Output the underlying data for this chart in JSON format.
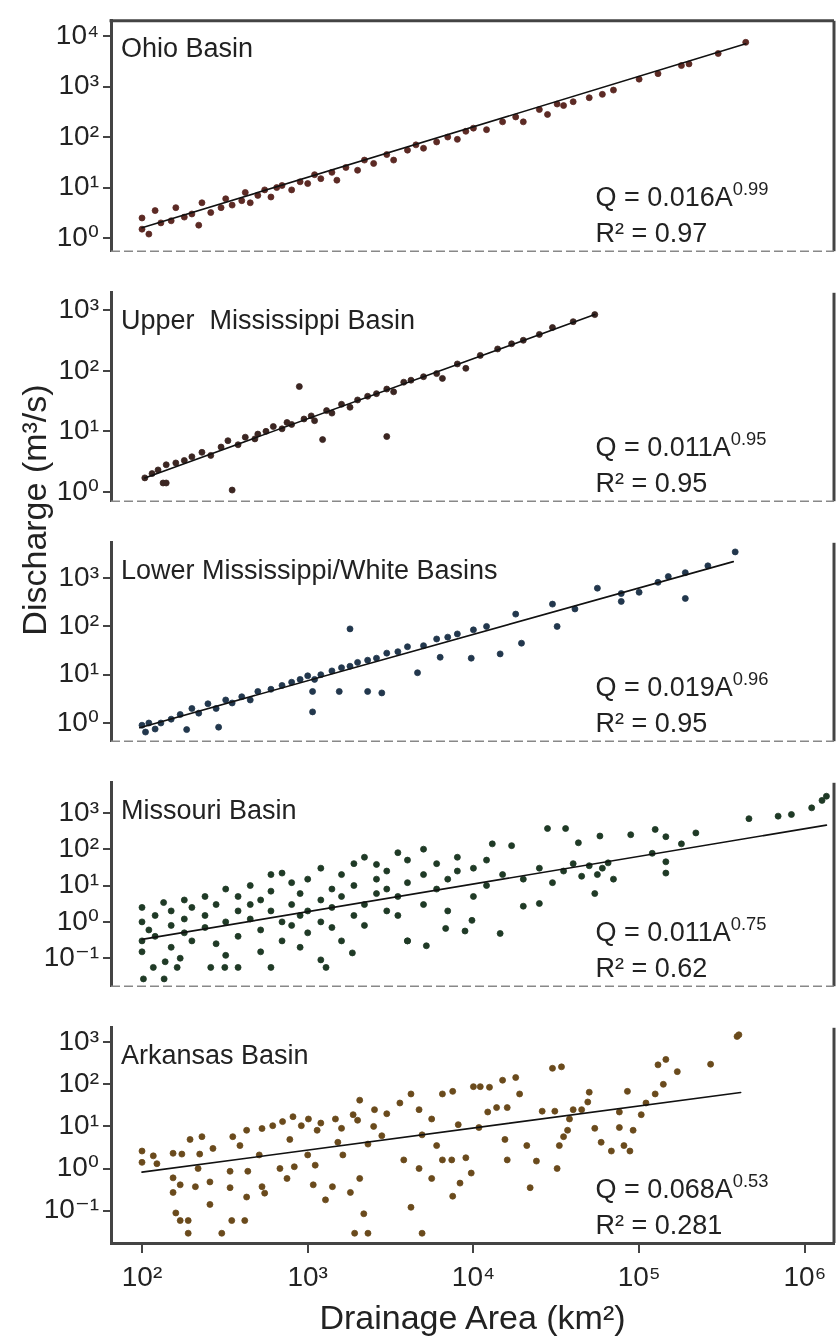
{
  "chart_data": [
    {
      "type": "scatter",
      "log": "xy",
      "tick_labels": "y",
      "xlim": [
        65,
        1500000
      ],
      "ylim": [
        0.55,
        20000
      ],
      "yticks": [
        {
          "value": 1,
          "label": "10⁰"
        },
        {
          "value": 10,
          "label": "10¹"
        },
        {
          "value": 100,
          "label": "10²"
        },
        {
          "value": 1000,
          "label": "10³"
        },
        {
          "value": 10000,
          "label": "10⁴"
        }
      ],
      "annotations": [
        "Ohio Basin",
        "Q = 0.016A$^{0.99}$",
        "R² = 0.97"
      ],
      "series": [
        {
          "type": "scatter",
          "marker": "circle",
          "color": "#5c2a24",
          "x": [
            100,
            100,
            110,
            120,
            130,
            150,
            160,
            180,
            200,
            220,
            230,
            260,
            300,
            320,
            350,
            400,
            420,
            450,
            500,
            550,
            600,
            650,
            700,
            800,
            900,
            1000,
            1100,
            1200,
            1400,
            1500,
            1700,
            2000,
            2200,
            2500,
            3000,
            3300,
            4000,
            4500,
            5000,
            6000,
            7000,
            8000,
            9000,
            10000,
            12000,
            15000,
            18000,
            20000,
            25000,
            28000,
            32000,
            35000,
            40000,
            50000,
            60000,
            70000,
            100000,
            130000,
            180000,
            200000,
            300000,
            440000
          ],
          "values": [
            1.5,
            2.5,
            1.2,
            3.5,
            2.0,
            2.2,
            4.0,
            2.6,
            3.0,
            1.8,
            5.0,
            3.2,
            4.0,
            6.0,
            4.5,
            5.5,
            8,
            5,
            7,
            9,
            6.5,
            10,
            11,
            9,
            13,
            12,
            18,
            15,
            20,
            14,
            25,
            22,
            35,
            30,
            45,
            35,
            55,
            70,
            60,
            80,
            100,
            90,
            130,
            150,
            140,
            200,
            250,
            200,
            350,
            280,
            450,
            420,
            500,
            600,
            700,
            850,
            1400,
            1800,
            2600,
            2800,
            4500,
            7500
          ]
        },
        {
          "type": "line",
          "marker": "none",
          "color": "#111111",
          "x": [
            100,
            440000
          ],
          "values": [
            1.6,
            7000
          ]
        }
      ]
    },
    {
      "type": "scatter",
      "log": "xy",
      "tick_labels": "y",
      "xlim": [
        65,
        1500000
      ],
      "ylim": [
        0.72,
        1950
      ],
      "yticks": [
        {
          "value": 1,
          "label": "10⁰"
        },
        {
          "value": 10,
          "label": "10¹"
        },
        {
          "value": 100,
          "label": "10²"
        },
        {
          "value": 1000,
          "label": "10³"
        }
      ],
      "annotations": [
        "Upper  Mississippi Basin",
        "Q = 0.011A$^{0.95}$",
        "R² = 0.95"
      ],
      "series": [
        {
          "type": "scatter",
          "marker": "circle",
          "color": "#3b2622",
          "x": [
            104,
            115,
            125,
            134,
            140,
            140,
            160,
            180,
            200,
            230,
            260,
            300,
            330,
            350,
            380,
            420,
            480,
            500,
            560,
            620,
            700,
            750,
            800,
            890,
            950,
            1050,
            1100,
            1230,
            1300,
            1400,
            1600,
            1800,
            2000,
            2300,
            2600,
            3000,
            3000,
            3300,
            3800,
            4200,
            5000,
            6000,
            6500,
            8000,
            9000,
            11000,
            14000,
            17000,
            20000,
            25000,
            30000,
            40000,
            54000
          ],
          "values": [
            1.7,
            2.0,
            2.3,
            1.4,
            1.4,
            2.8,
            3.0,
            3.3,
            3.8,
            4.5,
            4.0,
            5.5,
            7,
            1.07,
            6,
            8,
            7.5,
            9,
            10,
            12,
            11,
            14,
            13,
            55,
            16,
            18,
            15,
            7.3,
            22,
            20,
            28,
            25,
            33,
            38,
            42,
            8.2,
            50,
            45,
            65,
            70,
            80,
            90,
            75,
            130,
            110,
            180,
            230,
            280,
            320,
            400,
            520,
            650,
            850
          ]
        },
        {
          "type": "line",
          "marker": "none",
          "color": "#111111",
          "x": [
            104,
            54000
          ],
          "values": [
            1.7,
            850
          ]
        }
      ]
    },
    {
      "type": "scatter",
      "log": "xy",
      "tick_labels": "y",
      "ylabel": "Discharge (m³/s)",
      "xlim": [
        65,
        1500000
      ],
      "ylim": [
        0.42,
        5400
      ],
      "yticks": [
        {
          "value": 1,
          "label": "10⁰"
        },
        {
          "value": 10,
          "label": "10¹"
        },
        {
          "value": 100,
          "label": "10²"
        },
        {
          "value": 1000,
          "label": "10³"
        }
      ],
      "annotations": [
        "Lower Mississippi/White Basins",
        "Q = 0.019A$^{0.96}$",
        "R² = 0.95"
      ],
      "series": [
        {
          "type": "scatter",
          "marker": "circle",
          "color": "#22374d",
          "x": [
            100,
            105,
            110,
            120,
            130,
            150,
            170,
            200,
            220,
            250,
            280,
            320,
            350,
            400,
            450,
            500,
            600,
            700,
            800,
            900,
            1000,
            1100,
            1200,
            1400,
            1600,
            1800,
            2000,
            2300,
            2600,
            3000,
            3500,
            4000,
            5000,
            6000,
            7000,
            8000,
            10000,
            12000,
            1800,
            290,
            186,
            1070,
            1070,
            1550,
            2300,
            2800,
            14500,
            9700,
            6300,
            4600,
            19500,
            32000,
            41000,
            56000,
            78000,
            78000,
            100000,
            130000,
            150000,
            190000,
            190000,
            260000,
            380000,
            18000,
            30000
          ],
          "values": [
            0.9,
            0.65,
            1.0,
            0.75,
            1.0,
            1.2,
            1.5,
            2.0,
            1.6,
            2.5,
            2.0,
            3.0,
            2.6,
            3.5,
            3.0,
            4.5,
            5.0,
            6.0,
            7.0,
            8.0,
            9.5,
            8,
            10,
            12,
            14,
            15,
            18,
            20,
            22,
            28,
            30,
            38,
            40,
            55,
            60,
            70,
            85,
            100,
            89,
            0.82,
            0.73,
            1.7,
            4.5,
            4.5,
            4.5,
            4.2,
            27,
            22,
            23,
            11,
            45,
            100,
            230,
            620,
            330,
            480,
            510,
            820,
            1080,
            1300,
            380,
            1800,
            3500,
            180,
            290
          ]
        },
        {
          "type": "line",
          "marker": "none",
          "color": "#111111",
          "x": [
            97,
            370000
          ],
          "values": [
            0.8,
            2200
          ]
        }
      ]
    },
    {
      "type": "scatter",
      "log": "xy",
      "tick_labels": "y",
      "xlim": [
        65,
        1500000
      ],
      "ylim": [
        0.017,
        6700
      ],
      "yticks": [
        {
          "value": 0.1,
          "label": "10⁻¹"
        },
        {
          "value": 1,
          "label": "10⁰"
        },
        {
          "value": 10,
          "label": "10¹"
        },
        {
          "value": 100,
          "label": "10²"
        },
        {
          "value": 1000,
          "label": "10³"
        }
      ],
      "annotations": [
        "Missouri Basin",
        "Q = 0.011A$^{0.75}$",
        "R² = 0.62"
      ],
      "series": [
        {
          "type": "scatter",
          "marker": "circle",
          "color": "#1f3a26",
          "x": [
            100,
            100,
            100,
            100,
            110,
            120,
            120,
            135,
            150,
            150,
            150,
            180,
            180,
            180,
            200,
            200,
            240,
            240,
            240,
            280,
            280,
            320,
            320,
            320,
            380,
            380,
            380,
            450,
            450,
            450,
            520,
            520,
            520,
            600,
            600,
            600,
            700,
            700,
            700,
            800,
            800,
            800,
            900,
            900,
            900,
            1000,
            1000,
            1000,
            1200,
            1200,
            1200,
            1400,
            1400,
            1400,
            1600,
            1600,
            1600,
            1900,
            1900,
            1900,
            2200,
            2200,
            2200,
            2600,
            2600,
            2600,
            3000,
            3000,
            3000,
            3500,
            3500,
            3500,
            4000,
            4000,
            4000,
            5000,
            5000,
            5000,
            6000,
            6000,
            7000,
            7000,
            8000,
            8000,
            10000,
            10000,
            12000,
            12000,
            15000,
            102,
            136,
            117,
            163,
            260,
            316,
            380,
            600,
            1290,
            1200,
            1860,
            138,
            170,
            460000,
            690000,
            830000,
            1100000,
            1270000,
            1350000,
            145000,
            145000,
            145000,
            180000,
            220000,
            120000,
            28000,
            36000,
            13000,
            17000,
            43000,
            58000,
            89000,
            125000,
            56000,
            65000,
            54000,
            25000,
            20000,
            9800,
            14500,
            8900,
            6800,
            5200,
            4000,
            20000,
            25000,
            30000,
            35000,
            40000,
            45000,
            50000,
            60000,
            70000
          ],
          "values": [
            0.3,
            1.0,
            2.5,
            0.15,
            0.6,
            1.5,
            0.4,
            3.4,
            0.8,
            2.0,
            0.2,
            1.2,
            4,
            0.5,
            0.3,
            2.5,
            1.5,
            5,
            0.7,
            3,
            0.25,
            1,
            8,
            0.12,
            2,
            0.4,
            5,
            1.2,
            10,
            3,
            0.6,
            4,
            0.15,
            2,
            7,
            20,
            1,
            22,
            0.3,
            3,
            0.8,
            12,
            6,
            1.5,
            0.2,
            2,
            15,
            0.5,
            4,
            30,
            1,
            8,
            0.7,
            2.5,
            20,
            5,
            0.3,
            10,
            1.5,
            40,
            3,
            60,
            0.8,
            38,
            6,
            15,
            2,
            25,
            8,
            80,
            5,
            1.5,
            12,
            50,
            0.3,
            20,
            3,
            100,
            40,
            8,
            15,
            2,
            60,
            25,
            30,
            5,
            10,
            50,
            20,
            0.027,
            0.027,
            0.056,
            0.056,
            0.056,
            0.056,
            0.056,
            0.056,
            0.056,
            0.09,
            0.14,
            0.08,
            0.1,
            690,
            810,
            900,
            1370,
            2200,
            2860,
            220,
            45,
            22,
            140,
            280,
            77,
            370,
            370,
            140,
            125,
            150,
            230,
            250,
            350,
            20,
            42,
            6,
            3.2,
            2.7,
            1.1,
            0.48,
            0.56,
            0.66,
            0.22,
            0.3,
            15,
            30,
            12,
            25,
            40,
            18,
            35,
            30,
            15
          ]
        },
        {
          "type": "line",
          "marker": "none",
          "color": "#111111",
          "x": [
            100,
            1350000
          ],
          "values": [
            0.33,
            460
          ]
        }
      ]
    },
    {
      "type": "scatter",
      "log": "xy",
      "xlabel": "Drainage Area (km²)",
      "xlim": [
        65,
        1500000
      ],
      "xticks": [
        {
          "value": 100,
          "label": "10²"
        },
        {
          "value": 1000,
          "label": "10³"
        },
        {
          "value": 10000,
          "label": "10⁴"
        },
        {
          "value": 100000,
          "label": "10⁵"
        },
        {
          "value": 1000000,
          "label": "10⁶"
        }
      ],
      "ylim": [
        0.017,
        2200
      ],
      "yticks": [
        {
          "value": 0.1,
          "label": "10⁻¹"
        },
        {
          "value": 1,
          "label": "10⁰"
        },
        {
          "value": 10,
          "label": "10¹"
        },
        {
          "value": 100,
          "label": "10²"
        },
        {
          "value": 1000,
          "label": "10³"
        }
      ],
      "annotations": [
        "Arkansas Basin",
        "Q = 0.068A$^{0.53}$",
        "R² = 0.281"
      ],
      "series": [
        {
          "type": "scatter",
          "marker": "circle",
          "color": "#6a4a1c",
          "x": [
            100,
            100,
            117,
            123,
            154,
            154,
            174,
            154,
            170,
            160,
            170,
            190,
            190,
            195,
            230,
            218,
            210,
            257,
            223,
            268,
            257,
            303,
            340,
            340,
            348,
            353,
            390,
            417,
            428,
            428,
            435,
            510,
            530,
            530,
            550,
            615,
            680,
            705,
            750,
            780,
            815,
            830,
            915,
            1010,
            1000,
            1080,
            1110,
            1140,
            1280,
            1410,
            1470,
            1520,
            1630,
            1810,
            1880,
            2060,
            2060,
            1920,
            2180,
            2310,
            2310,
            2530,
            3600,
            4200,
            4700,
            4900,
            5600,
            6500,
            6000,
            3800,
            4700,
            5600,
            4200,
            4900,
            6500,
            7500,
            8100,
            7400,
            7500,
            8300,
            10000,
            9000,
            9700,
            11000,
            10800,
            12500,
            12200,
            13800,
            16000,
            15000,
            18000,
            19000,
            15500,
            16000,
            21000,
            22000,
            24000,
            26000,
            31000,
            30000,
            34000,
            32000,
            33000,
            35000,
            37000,
            38000,
            40000,
            45000,
            50000,
            49000,
            54000,
            59000,
            68000,
            76000,
            76000,
            81000,
            85000,
            88000,
            92000,
            103000,
            110000,
            125000,
            140000,
            130000,
            145000,
            170000,
            270000,
            390000,
            400000,
            1200,
            1600,
            2000,
            2500,
            3000,
            2800
          ],
          "values": [
            2.6,
            1.4,
            2.0,
            1.3,
            0.6,
            2.3,
            2.2,
            0.27,
            0.41,
            0.088,
            0.058,
            0.058,
            0.029,
            4.9,
            5.7,
            1.0,
            0.37,
            0.14,
            2.2,
            3,
            0.48,
            0.029,
            0.86,
            0.35,
            0.058,
            5.7,
            3.5,
            0.058,
            0.21,
            8.1,
            0.86,
            2.1,
            8.9,
            0.37,
            0.26,
            10.4,
            1,
            13,
            0.58,
            4.9,
            17,
            1.1,
            10.4,
            15,
            2.1,
            0.41,
            1.2,
            8.1,
            0.18,
            0.37,
            15,
            4.2,
            2.1,
            0.27,
            19,
            42,
            0.58,
            0.029,
            0.084,
            0.029,
            3.8,
            25,
            36,
            59,
            25,
            6.3,
            15,
            59,
            3.5,
            1.6,
            1.0,
            0.58,
            0.12,
            0.029,
            1.6,
            68,
            11,
            1.6,
            0.22,
            0.45,
            88,
            1.8,
            0.78,
            88,
            9.4,
            85,
            22,
            28,
            28,
            125,
            145,
            59,
            4.9,
            1.6,
            3.5,
            0.35,
            1.5,
            23,
            23,
            240,
            260,
            1.0,
            3.5,
            5.7,
            8.1,
            15,
            25,
            25,
            65,
            38,
            9,
            4.2,
            2.6,
            22,
            9.4,
            3.5,
            68,
            2.6,
            8.1,
            19,
            36,
            59,
            100,
            290,
            390,
            200,
            300,
            1370,
            1500,
            12,
            9,
            14,
            10,
            20,
            6
          ]
        },
        {
          "type": "line",
          "marker": "none",
          "color": "#111111",
          "x": [
            100,
            410000
          ],
          "values": [
            0.82,
            64
          ]
        }
      ]
    }
  ]
}
